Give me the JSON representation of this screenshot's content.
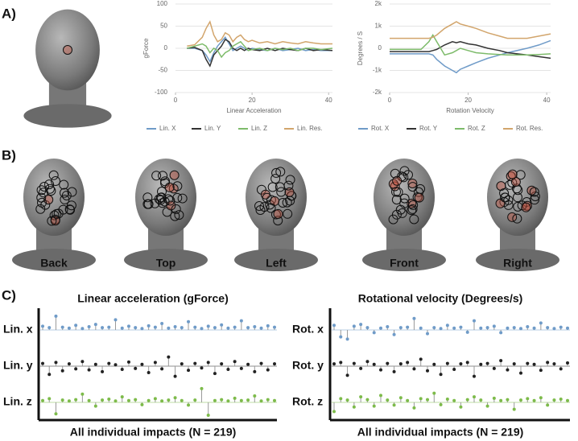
{
  "panel_labels": [
    "A)",
    "B)",
    "C)"
  ],
  "views": [
    "Back",
    "Top",
    "Left",
    "Front",
    "Right"
  ],
  "chart_data": [
    {
      "type": "line",
      "ylabel": "gForce",
      "xlabel": "Linear Acceleration",
      "xlim": [
        0,
        41
      ],
      "xticks": [
        0,
        20,
        40
      ],
      "ylim": [
        -100,
        100
      ],
      "yticks": [
        -100,
        -50,
        0,
        50,
        100
      ],
      "x": [
        3,
        5,
        7,
        8,
        9,
        10,
        11,
        12,
        13,
        14,
        15,
        16,
        17,
        18,
        19,
        20,
        22,
        24,
        26,
        28,
        30,
        32,
        34,
        36,
        38,
        41
      ],
      "series": [
        {
          "name": "Lin. X",
          "color": "#6f9bc8",
          "values": [
            0,
            0,
            -5,
            -15,
            -30,
            -10,
            5,
            15,
            25,
            10,
            -5,
            0,
            5,
            0,
            -5,
            0,
            -3,
            -5,
            0,
            -5,
            -3,
            0,
            -5,
            -3,
            -5,
            -5
          ]
        },
        {
          "name": "Lin. Y",
          "color": "#333333",
          "values": [
            0,
            2,
            -5,
            -25,
            -40,
            -15,
            -5,
            5,
            20,
            15,
            0,
            -5,
            0,
            -5,
            0,
            -3,
            -5,
            0,
            -5,
            0,
            -3,
            -5,
            0,
            -5,
            -3,
            -5
          ]
        },
        {
          "name": "Lin. Z",
          "color": "#7dbb6a",
          "values": [
            0,
            5,
            10,
            5,
            -10,
            0,
            -5,
            -20,
            -10,
            -5,
            5,
            10,
            15,
            5,
            -5,
            -3,
            0,
            -5,
            0,
            -3,
            0,
            -5,
            0,
            0,
            -3,
            0
          ]
        },
        {
          "name": "Lin. Res.",
          "color": "#d2a56c",
          "values": [
            5,
            8,
            25,
            45,
            60,
            30,
            15,
            20,
            35,
            30,
            15,
            25,
            30,
            20,
            15,
            18,
            12,
            15,
            10,
            15,
            12,
            10,
            15,
            12,
            10,
            10
          ]
        }
      ]
    },
    {
      "type": "line",
      "ylabel": "Degrees / S",
      "xlabel": "Rotation Velocity",
      "xlim": [
        0,
        41
      ],
      "xticks": [
        0,
        20,
        40
      ],
      "ylim": [
        -2000,
        2000
      ],
      "yticks": [
        {
          "value": -2000,
          "label": "-2k"
        },
        {
          "value": -1000,
          "label": "-1k"
        },
        0,
        {
          "value": 1000,
          "label": "1k"
        },
        {
          "value": 2000,
          "label": "2k"
        }
      ],
      "x": [
        0,
        5,
        8,
        10,
        11,
        12,
        14,
        16,
        17,
        18,
        20,
        22,
        25,
        28,
        30,
        35,
        38,
        41
      ],
      "series": [
        {
          "name": "Rot. X",
          "color": "#6f9bc8",
          "values": [
            -250,
            -250,
            -250,
            -250,
            -300,
            -500,
            -800,
            -1000,
            -1100,
            -950,
            -800,
            -650,
            -450,
            -300,
            -200,
            0,
            150,
            350
          ]
        },
        {
          "name": "Rot. Y",
          "color": "#333333",
          "values": [
            -150,
            -150,
            -150,
            -150,
            -100,
            -50,
            150,
            300,
            250,
            300,
            200,
            150,
            0,
            -100,
            -200,
            -300,
            -380,
            -450
          ]
        },
        {
          "name": "Rot. Z",
          "color": "#7dbb6a",
          "values": [
            -50,
            -50,
            -50,
            300,
            600,
            300,
            -300,
            -200,
            -100,
            0,
            -100,
            -200,
            -250,
            -280,
            -300,
            -300,
            -280,
            -250
          ]
        },
        {
          "name": "Rot. Res.",
          "color": "#d2a56c",
          "values": [
            450,
            450,
            450,
            450,
            500,
            600,
            900,
            1100,
            1200,
            1100,
            1000,
            900,
            700,
            550,
            450,
            450,
            550,
            650
          ]
        }
      ]
    },
    {
      "type": "stem",
      "title": "Linear acceleration (gForce)",
      "xlabel": "All individual impacts (N = 219)",
      "ylim": [
        -35,
        35
      ],
      "series": [
        {
          "name": "Lin. x",
          "color": "#6f9bc8",
          "values": [
            8,
            5,
            30,
            6,
            4,
            10,
            3,
            7,
            12,
            5,
            6,
            22,
            4,
            8,
            5,
            3,
            9,
            6,
            14,
            4,
            7,
            5,
            18,
            6,
            3,
            8,
            5,
            11,
            4,
            6,
            20,
            5,
            7,
            4,
            9,
            6
          ]
        },
        {
          "name": "Lin. y",
          "color": "#222222",
          "values": [
            6,
            -18,
            8,
            -10,
            5,
            -6,
            10,
            -8,
            4,
            -12,
            6,
            3,
            -7,
            9,
            -5,
            4,
            -14,
            8,
            -6,
            20,
            -22,
            5,
            -9,
            6,
            -4,
            8,
            -16,
            5,
            -7,
            10,
            -5,
            4,
            -12,
            6,
            -8,
            5
          ]
        },
        {
          "name": "Lin. z",
          "color": "#7dbb4a",
          "values": [
            4,
            8,
            -25,
            5,
            3,
            6,
            18,
            4,
            -8,
            5,
            7,
            3,
            12,
            4,
            6,
            -5,
            4,
            8,
            3,
            5,
            10,
            4,
            -6,
            5,
            30,
            -28,
            4,
            6,
            3,
            9,
            4,
            5,
            14,
            3,
            6,
            4
          ]
        }
      ]
    },
    {
      "type": "stem",
      "title": "Rotational velocity (Degrees/s)",
      "xlabel": "All individual impacts (N = 219)",
      "ylim": [
        -35,
        35
      ],
      "series": [
        {
          "name": "Rot. x",
          "color": "#6f9bc8",
          "values": [
            10,
            -15,
            -20,
            8,
            12,
            5,
            -6,
            4,
            7,
            -10,
            5,
            6,
            25,
            4,
            -8,
            5,
            3,
            10,
            4,
            6,
            -5,
            20,
            4,
            5,
            8,
            -6,
            4,
            5,
            3,
            7,
            4,
            15,
            5,
            3,
            6,
            4
          ]
        },
        {
          "name": "Rot. y",
          "color": "#222222",
          "values": [
            5,
            8,
            -20,
            6,
            -5,
            10,
            4,
            -8,
            6,
            -12,
            5,
            8,
            -6,
            15,
            -10,
            4,
            -18,
            6,
            -7,
            5,
            8,
            -22,
            4,
            6,
            -5,
            12,
            -8,
            5,
            -15,
            6,
            4,
            -9,
            8,
            5,
            -6,
            7
          ]
        },
        {
          "name": "Rot. z",
          "color": "#7dbb4a",
          "values": [
            -20,
            8,
            5,
            -10,
            12,
            6,
            -8,
            15,
            5,
            -6,
            10,
            4,
            -12,
            8,
            6,
            20,
            -5,
            7,
            4,
            -10,
            6,
            12,
            5,
            -8,
            9,
            4,
            6,
            -15,
            5,
            8,
            4,
            10,
            -6,
            5,
            7,
            4
          ]
        }
      ]
    }
  ]
}
